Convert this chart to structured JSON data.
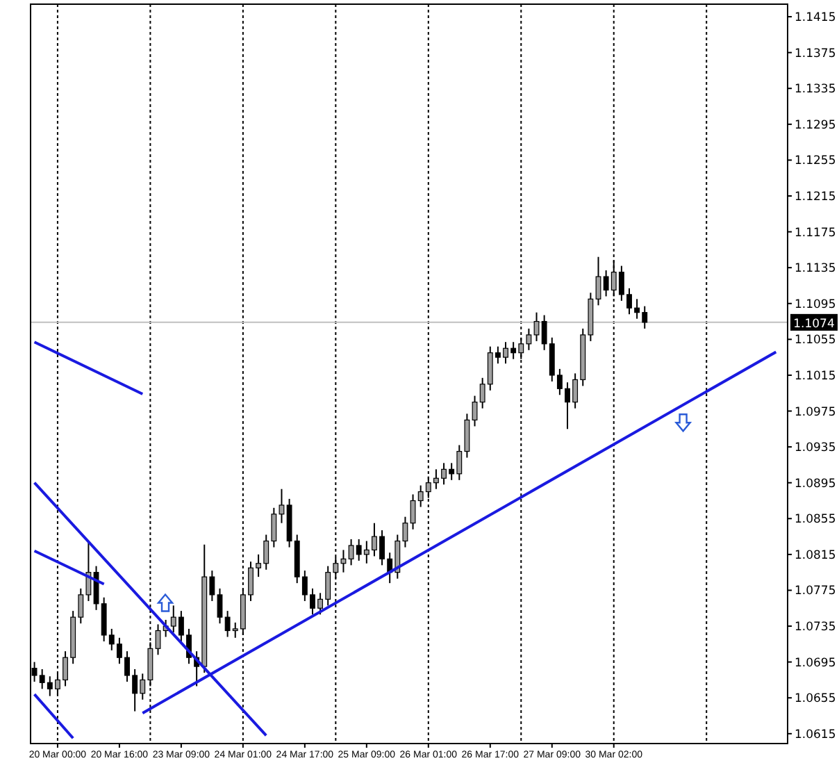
{
  "chart_data": {
    "type": "candlestick",
    "categories": [
      null,
      null,
      null,
      "20 Mar 00:00",
      null,
      null,
      null,
      null,
      null,
      null,
      null,
      "20 Mar 16:00",
      null,
      null,
      null,
      null,
      null,
      null,
      null,
      "23 Mar 09:00",
      null,
      null,
      null,
      null,
      null,
      null,
      null,
      "24 Mar 01:00",
      null,
      null,
      null,
      null,
      null,
      null,
      null,
      "24 Mar 17:00",
      null,
      null,
      null,
      null,
      null,
      null,
      null,
      "25 Mar 09:00",
      null,
      null,
      null,
      null,
      null,
      null,
      null,
      "26 Mar 01:00",
      null,
      null,
      null,
      null,
      null,
      null,
      null,
      "26 Mar 17:00",
      null,
      null,
      null,
      null,
      null,
      null,
      null,
      "27 Mar 09:00",
      null,
      null,
      null,
      null,
      null,
      null,
      null,
      "30 Mar 02:00",
      null,
      null,
      null,
      null,
      null,
      null,
      null,
      null,
      null,
      null,
      null,
      null,
      null,
      null,
      null,
      null,
      null,
      null,
      null,
      null,
      null,
      null
    ],
    "ohlc": [
      [
        1.0688,
        1.0695,
        1.0673,
        1.068
      ],
      [
        1.068,
        1.0687,
        1.0665,
        1.0672
      ],
      [
        1.0672,
        1.0679,
        1.0657,
        1.0665
      ],
      [
        1.0665,
        1.0682,
        1.0658,
        1.0675
      ],
      [
        1.0675,
        1.0707,
        1.0668,
        1.07
      ],
      [
        1.07,
        1.0752,
        1.0693,
        1.0745
      ],
      [
        1.0745,
        1.0777,
        1.0738,
        1.077
      ],
      [
        1.077,
        1.083,
        1.0763,
        1.0795
      ],
      [
        1.0795,
        1.0802,
        1.0753,
        1.076
      ],
      [
        1.076,
        1.0767,
        1.0718,
        1.0725
      ],
      [
        1.0725,
        1.0732,
        1.0708,
        1.0715
      ],
      [
        1.0715,
        1.0722,
        1.0693,
        1.07
      ],
      [
        1.07,
        1.0707,
        1.0673,
        1.068
      ],
      [
        1.068,
        1.0687,
        1.064,
        1.066
      ],
      [
        1.066,
        1.0682,
        1.0653,
        1.0675
      ],
      [
        1.0675,
        1.0717,
        1.0668,
        1.071
      ],
      [
        1.071,
        1.0737,
        1.0703,
        1.073
      ],
      [
        1.073,
        1.0742,
        1.0723,
        1.0735
      ],
      [
        1.0735,
        1.0758,
        1.0728,
        1.0745
      ],
      [
        1.0745,
        1.0752,
        1.0718,
        1.0725
      ],
      [
        1.0725,
        1.0732,
        1.0693,
        1.07
      ],
      [
        1.07,
        1.0707,
        1.0668,
        1.069
      ],
      [
        1.069,
        1.0826,
        1.0683,
        1.079
      ],
      [
        1.079,
        1.0797,
        1.0763,
        1.077
      ],
      [
        1.077,
        1.0777,
        1.0738,
        1.0745
      ],
      [
        1.0745,
        1.0752,
        1.0723,
        1.073
      ],
      [
        1.073,
        1.0739,
        1.0722,
        1.0732
      ],
      [
        1.0732,
        1.0777,
        1.0725,
        1.077
      ],
      [
        1.077,
        1.0807,
        1.0763,
        1.08
      ],
      [
        1.08,
        1.0815,
        1.079,
        1.0805
      ],
      [
        1.0805,
        1.0837,
        1.0798,
        1.083
      ],
      [
        1.083,
        1.0867,
        1.0823,
        1.086
      ],
      [
        1.086,
        1.0888,
        1.085,
        1.087
      ],
      [
        1.087,
        1.0877,
        1.0823,
        1.083
      ],
      [
        1.083,
        1.0837,
        1.0783,
        1.079
      ],
      [
        1.079,
        1.0797,
        1.0763,
        1.077
      ],
      [
        1.077,
        1.0777,
        1.0748,
        1.0755
      ],
      [
        1.0755,
        1.0772,
        1.0748,
        1.0765
      ],
      [
        1.0765,
        1.0802,
        1.0758,
        1.0795
      ],
      [
        1.0795,
        1.0812,
        1.0788,
        1.0805
      ],
      [
        1.0805,
        1.082,
        1.0795,
        1.081
      ],
      [
        1.081,
        1.0832,
        1.0803,
        1.0825
      ],
      [
        1.0825,
        1.0832,
        1.0808,
        1.0815
      ],
      [
        1.0815,
        1.083,
        1.0805,
        1.082
      ],
      [
        1.082,
        1.085,
        1.0813,
        1.0835
      ],
      [
        1.0835,
        1.0842,
        1.0803,
        1.081
      ],
      [
        1.081,
        1.0817,
        1.0783,
        1.0795
      ],
      [
        1.0795,
        1.0837,
        1.0788,
        1.083
      ],
      [
        1.083,
        1.0857,
        1.0823,
        1.085
      ],
      [
        1.085,
        1.0882,
        1.0843,
        1.0875
      ],
      [
        1.0875,
        1.0892,
        1.0868,
        1.0885
      ],
      [
        1.0885,
        1.0902,
        1.0878,
        1.0895
      ],
      [
        1.0895,
        1.091,
        1.0888,
        1.09
      ],
      [
        1.09,
        1.0917,
        1.0893,
        1.091
      ],
      [
        1.091,
        1.0917,
        1.0898,
        1.0905
      ],
      [
        1.0905,
        1.0937,
        1.0898,
        1.093
      ],
      [
        1.093,
        1.0972,
        1.0923,
        1.0965
      ],
      [
        1.0965,
        1.0992,
        1.0958,
        1.0985
      ],
      [
        1.0985,
        1.1012,
        1.0978,
        1.1005
      ],
      [
        1.1005,
        1.1047,
        1.0998,
        1.104
      ],
      [
        1.104,
        1.1047,
        1.1028,
        1.1035
      ],
      [
        1.1035,
        1.1052,
        1.1028,
        1.1045
      ],
      [
        1.1045,
        1.1052,
        1.1033,
        1.104
      ],
      [
        1.104,
        1.1057,
        1.1033,
        1.105
      ],
      [
        1.105,
        1.1067,
        1.1043,
        1.106
      ],
      [
        1.106,
        1.1085,
        1.1053,
        1.1075
      ],
      [
        1.1075,
        1.1082,
        1.1043,
        1.105
      ],
      [
        1.105,
        1.1057,
        1.1008,
        1.1015
      ],
      [
        1.1015,
        1.1022,
        1.0993,
        1.1
      ],
      [
        1.1,
        1.1007,
        1.0955,
        1.0985
      ],
      [
        1.0985,
        1.1017,
        1.0978,
        1.101
      ],
      [
        1.101,
        1.1067,
        1.1003,
        1.106
      ],
      [
        1.106,
        1.1107,
        1.1053,
        1.11
      ],
      [
        1.11,
        1.1147,
        1.1093,
        1.1125
      ],
      [
        1.1125,
        1.1132,
        1.1103,
        1.111
      ],
      [
        1.111,
        1.1143,
        1.1103,
        1.113
      ],
      [
        1.113,
        1.1137,
        1.1098,
        1.1105
      ],
      [
        1.1105,
        1.1112,
        1.1083,
        1.109
      ],
      [
        1.109,
        1.11,
        1.1078,
        1.1085
      ],
      [
        1.1085,
        1.1092,
        1.1067,
        1.1074
      ],
      null,
      null,
      null,
      null,
      null,
      null,
      null,
      null,
      null,
      null,
      null,
      null,
      null,
      null,
      null,
      null,
      null,
      null
    ],
    "series": [
      {
        "type": "line",
        "color": "#1a1ae0",
        "values": [
          null,
          null,
          null,
          null,
          null,
          null,
          null,
          null,
          null,
          null,
          null,
          null,
          null,
          null,
          1.0638,
          null,
          null,
          null,
          null,
          null,
          null,
          null,
          null,
          null,
          null,
          null,
          null,
          null,
          null,
          null,
          null,
          null,
          null,
          null,
          null,
          null,
          null,
          null,
          null,
          null,
          null,
          null,
          null,
          null,
          null,
          null,
          null,
          null,
          null,
          null,
          null,
          null,
          null,
          null,
          null,
          null,
          null,
          null,
          null,
          null,
          null,
          null,
          null,
          null,
          null,
          null,
          null,
          null,
          null,
          null,
          null,
          null,
          null,
          null,
          null,
          null,
          null,
          null,
          null,
          null,
          null,
          null,
          null,
          null,
          null,
          null,
          null,
          null,
          null,
          null,
          null,
          null,
          null,
          null,
          null,
          null,
          1.1041,
          null
        ]
      },
      {
        "type": "line",
        "color": "#1a1ae0",
        "values": [
          1.1052,
          null,
          null,
          null,
          null,
          null,
          null,
          null,
          null,
          null,
          null,
          null,
          null,
          null,
          1.0994,
          null,
          null,
          null,
          null,
          null,
          null,
          null,
          null,
          null,
          null,
          null,
          null,
          null,
          null,
          null,
          null,
          null,
          null,
          null,
          null,
          null,
          null,
          null,
          null,
          null,
          null,
          null,
          null,
          null,
          null,
          null,
          null,
          null,
          null,
          null,
          null,
          null,
          null,
          null,
          null,
          null,
          null,
          null,
          null,
          null,
          null,
          null,
          null,
          null,
          null,
          null,
          null,
          null,
          null,
          null,
          null,
          null,
          null,
          null,
          null,
          null,
          null,
          null,
          null,
          null,
          null,
          null,
          null,
          null,
          null,
          null,
          null,
          null,
          null,
          null,
          null,
          null,
          null,
          null,
          null,
          null,
          null,
          null
        ]
      },
      {
        "type": "line",
        "color": "#1a1ae0",
        "values": [
          1.0895,
          null,
          null,
          null,
          null,
          null,
          null,
          null,
          null,
          null,
          null,
          null,
          null,
          null,
          null,
          null,
          null,
          null,
          null,
          null,
          null,
          null,
          null,
          null,
          null,
          null,
          null,
          null,
          null,
          null,
          1.0613,
          null,
          null,
          null,
          null,
          null,
          null,
          null,
          null,
          null,
          null,
          null,
          null,
          null,
          null,
          null,
          null,
          null,
          null,
          null,
          null,
          null,
          null,
          null,
          null,
          null,
          null,
          null,
          null,
          null,
          null,
          null,
          null,
          null,
          null,
          null,
          null,
          null,
          null,
          null,
          null,
          null,
          null,
          null,
          null,
          null,
          null,
          null,
          null,
          null,
          null,
          null,
          null,
          null,
          null,
          null,
          null,
          null,
          null,
          null,
          null,
          null,
          null,
          null,
          null,
          null,
          null,
          null
        ]
      },
      {
        "type": "line",
        "color": "#1a1ae0",
        "values": [
          1.0819,
          null,
          null,
          null,
          null,
          null,
          null,
          null,
          null,
          1.0782,
          null,
          null,
          null,
          null,
          null,
          null,
          null,
          null,
          null,
          null,
          null,
          null,
          null,
          null,
          null,
          null,
          null,
          null,
          null,
          null,
          null,
          null,
          null,
          null,
          null,
          null,
          null,
          null,
          null,
          null,
          null,
          null,
          null,
          null,
          null,
          null,
          null,
          null,
          null,
          null,
          null,
          null,
          null,
          null,
          null,
          null,
          null,
          null,
          null,
          null,
          null,
          null,
          null,
          null,
          null,
          null,
          null,
          null,
          null,
          null,
          null,
          null,
          null,
          null,
          null,
          null,
          null,
          null,
          null,
          null,
          null,
          null,
          null,
          null,
          null,
          null,
          null,
          null,
          null,
          null,
          null,
          null,
          null,
          null,
          null,
          null,
          null,
          null
        ]
      },
      {
        "type": "line",
        "color": "#1a1ae0",
        "values": [
          1.0659,
          null,
          null,
          null,
          null,
          1.061,
          null,
          null,
          null,
          null,
          null,
          null,
          null,
          null,
          null,
          null,
          null,
          null,
          null,
          null,
          null,
          null,
          null,
          null,
          null,
          null,
          null,
          null,
          null,
          null,
          null,
          null,
          null,
          null,
          null,
          null,
          null,
          null,
          null,
          null,
          null,
          null,
          null,
          null,
          null,
          null,
          null,
          null,
          null,
          null,
          null,
          null,
          null,
          null,
          null,
          null,
          null,
          null,
          null,
          null,
          null,
          null,
          null,
          null,
          null,
          null,
          null,
          null,
          null,
          null,
          null,
          null,
          null,
          null,
          null,
          null,
          null,
          null,
          null,
          null,
          null,
          null,
          null,
          null,
          null,
          null,
          null,
          null,
          null,
          null,
          null,
          null,
          null,
          null,
          null,
          null,
          null,
          null
        ]
      }
    ],
    "ylim": [
      1.0604,
      1.1429
    ],
    "yticks": [
      1.0615,
      1.0655,
      1.0695,
      1.0735,
      1.0775,
      1.0815,
      1.0855,
      1.0895,
      1.0935,
      1.0975,
      1.1015,
      1.1055,
      1.1095,
      1.1135,
      1.1175,
      1.1215,
      1.1255,
      1.1295,
      1.1335,
      1.1375,
      1.1415
    ],
    "grid": "x",
    "ref_lines": [
      {
        "axis": "y",
        "value": 1.1074,
        "label": "1.1074",
        "color": "#c0c0c0"
      }
    ]
  }
}
